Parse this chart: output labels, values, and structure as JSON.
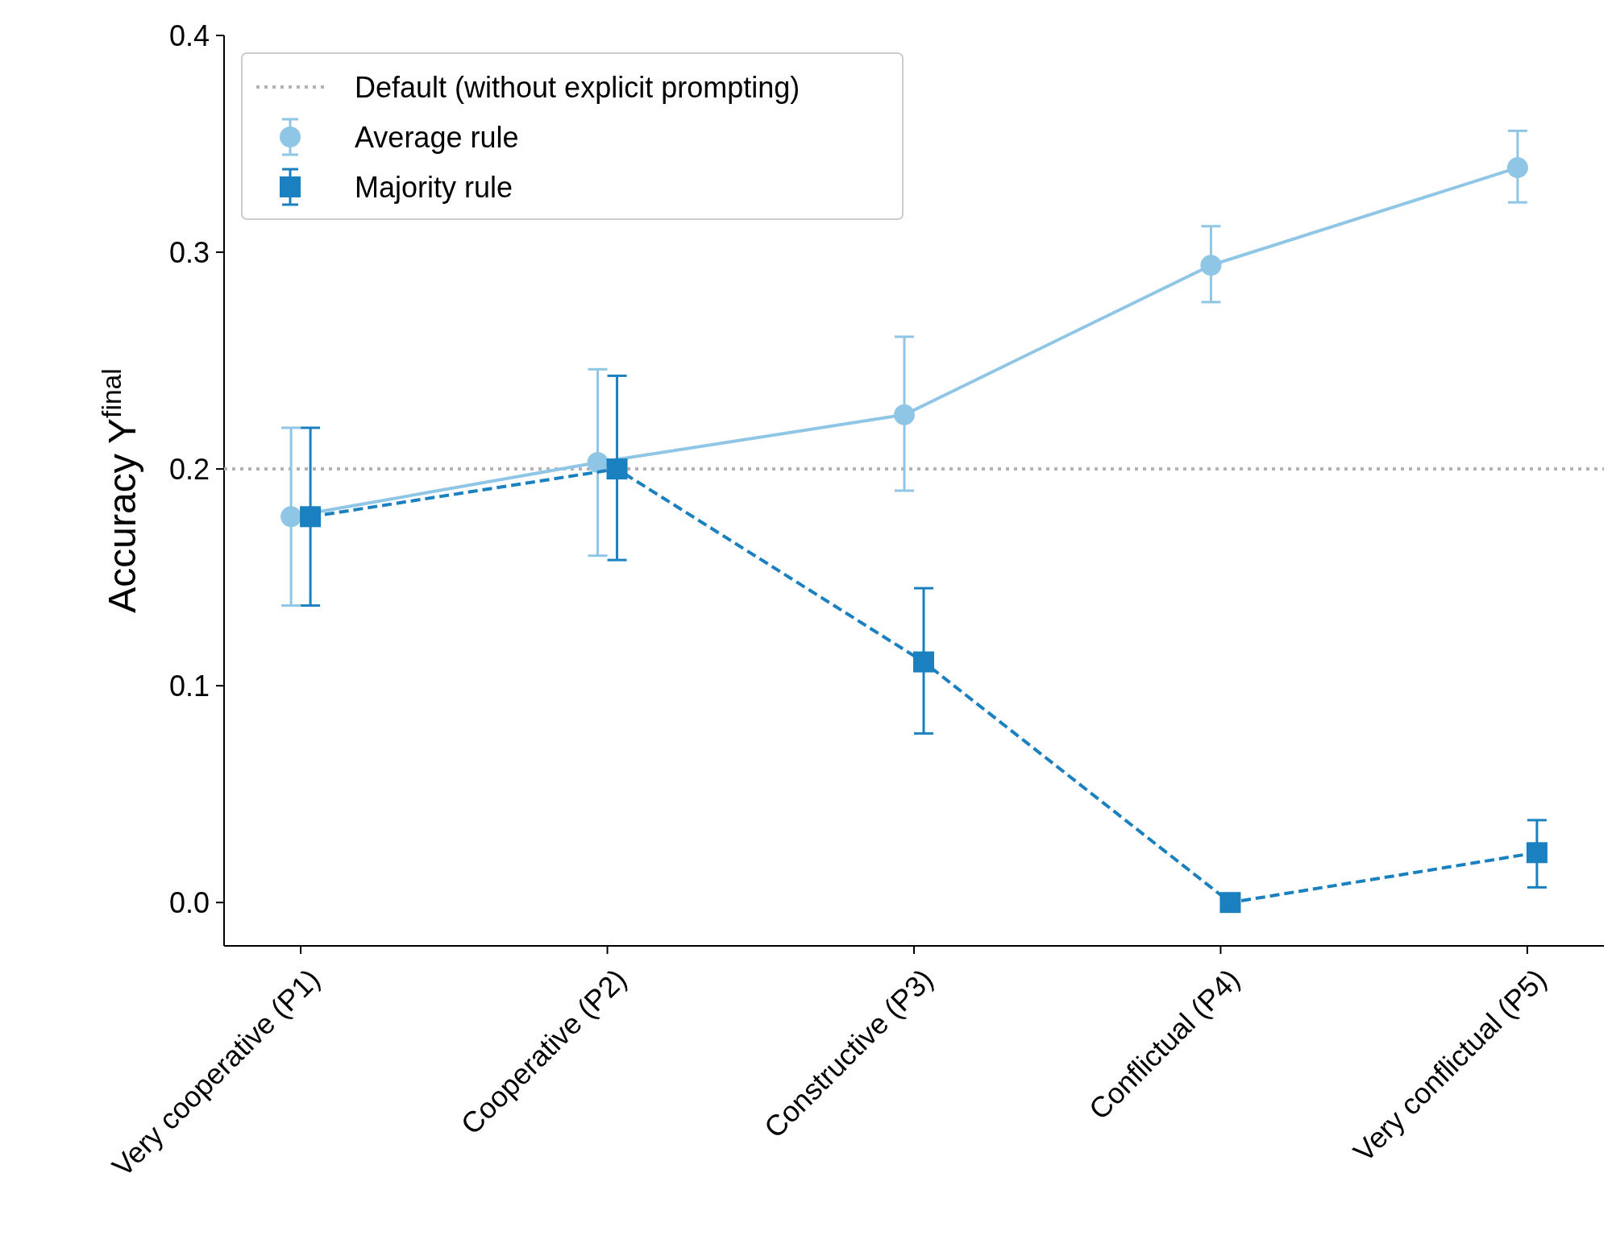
{
  "chart_data": {
    "type": "line",
    "ylabel": "Accuracy Y$^{final}$",
    "categories": [
      "Very cooperative (P1)",
      "Cooperative (P2)",
      "Constructive (P3)",
      "Conflictual (P4)",
      "Very conflictual (P5)"
    ],
    "ylim": [
      -0.02,
      0.4
    ],
    "yticks": [
      {
        "value": 0,
        "label": "0.0"
      },
      0.1,
      0.2,
      0.3,
      0.4
    ],
    "grid": false,
    "legend": "top left",
    "ref_lines": [
      {
        "axis": "y",
        "value": 0.2,
        "label": "Default (without explicit prompting)",
        "color": "#b3b3b3",
        "line_style": "dotted"
      }
    ],
    "series": [
      {
        "name": "Average rule",
        "color": "#8fc6e6",
        "marker": "circle",
        "line_style": "solid",
        "values": [
          0.178,
          0.203,
          0.225,
          0.294,
          0.339
        ],
        "errors": [
          [
            0.137,
            0.219
          ],
          [
            0.16,
            0.246
          ],
          [
            0.19,
            0.261
          ],
          [
            0.277,
            0.312
          ],
          [
            0.323,
            0.356
          ]
        ]
      },
      {
        "name": "Majority rule",
        "color": "#1a80bf",
        "marker": "square",
        "line_style": "dashed",
        "values": [
          0.178,
          0.2,
          0.111,
          0,
          0.023
        ],
        "errors": [
          [
            0.137,
            0.219
          ],
          [
            0.158,
            0.243
          ],
          [
            0.078,
            0.145
          ],
          null,
          [
            0.007,
            0.038
          ]
        ]
      }
    ]
  }
}
